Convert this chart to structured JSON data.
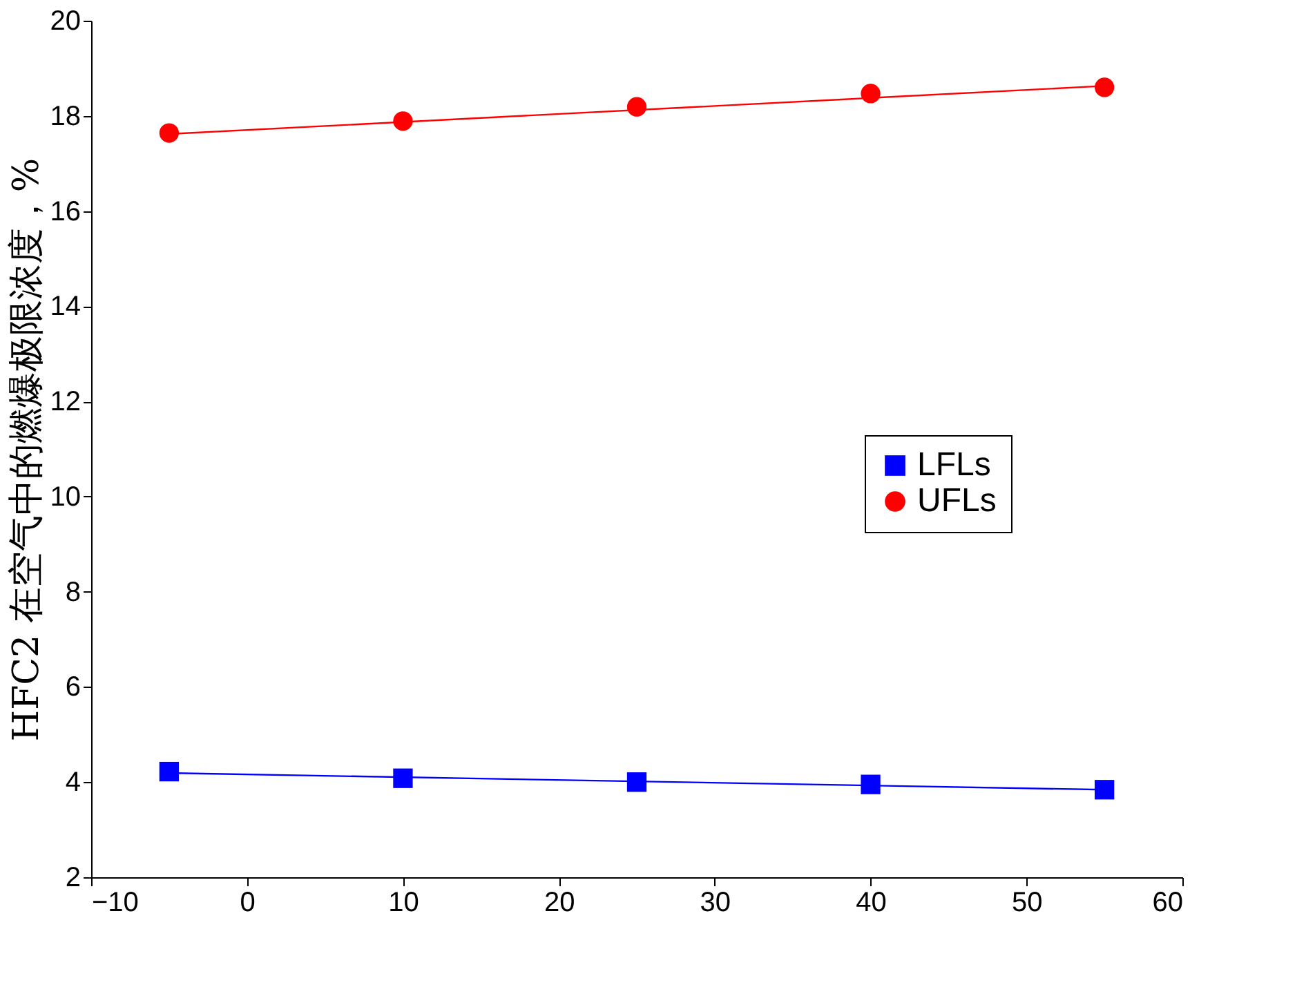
{
  "chart_data": {
    "type": "scatter",
    "ylabel": "HFC2  在空气中的燃爆极限浓度，%",
    "xlim": [
      -10,
      60
    ],
    "xticks": [
      -10,
      0,
      10,
      20,
      30,
      40,
      50,
      60
    ],
    "ylim": [
      2,
      20
    ],
    "yticks": [
      2,
      4,
      6,
      8,
      10,
      12,
      14,
      16,
      18,
      20
    ],
    "grid": false,
    "legend": "right",
    "series": [
      {
        "name": "LFLs",
        "marker": "square",
        "color": "#0000ff",
        "x": [
          -5,
          10,
          25,
          40,
          55
        ],
        "values": [
          4.22,
          4.08,
          4.0,
          3.95,
          3.84
        ]
      },
      {
        "name": "UFLs",
        "marker": "circle",
        "color": "#ff0000",
        "x": [
          -5,
          10,
          25,
          40,
          55
        ],
        "values": [
          17.64,
          17.89,
          18.19,
          18.47,
          18.6
        ]
      },
      {
        "type": "line",
        "color": "#0000ff",
        "line_style": "solid",
        "marker": "none",
        "x": [
          -5,
          55
        ],
        "values": [
          4.19,
          3.84
        ]
      },
      {
        "type": "line",
        "color": "#ff0000",
        "line_style": "solid",
        "marker": "none",
        "x": [
          -5,
          55
        ],
        "values": [
          17.62,
          18.63
        ]
      }
    ]
  }
}
